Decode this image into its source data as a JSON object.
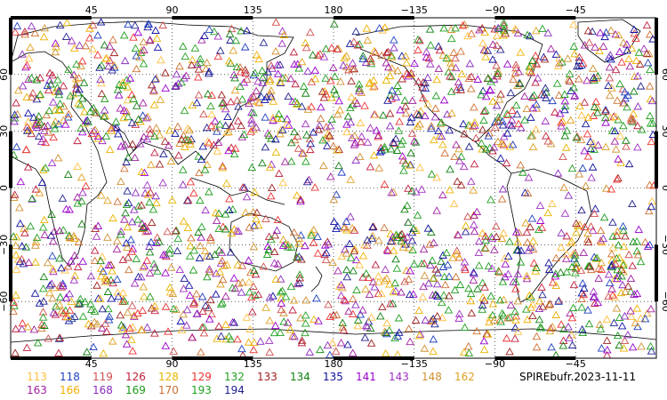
{
  "map": {
    "projection": "equirectangular",
    "lon_range": [
      0,
      360
    ],
    "lat_range": [
      -90,
      90
    ],
    "top_lon_ticks": [
      "45",
      "90",
      "135",
      "180",
      "−135",
      "−90",
      "−45"
    ],
    "bottom_lon_ticks": [
      "45",
      "90",
      "135",
      "180",
      "−135",
      "−90",
      "−45"
    ],
    "lat_ticks": [
      "60",
      "30",
      "0",
      "−30",
      "−60"
    ],
    "marker_shape": "triangle-outline",
    "coastlines": true,
    "gridlines": "dotted"
  },
  "legend": {
    "items": [
      {
        "label": "113",
        "color": "#ffbf3f"
      },
      {
        "label": "118",
        "color": "#1f3fbf"
      },
      {
        "label": "119",
        "color": "#d05050"
      },
      {
        "label": "126",
        "color": "#c0203f"
      },
      {
        "label": "128",
        "color": "#e8b400"
      },
      {
        "label": "129",
        "color": "#ee3333"
      },
      {
        "label": "132",
        "color": "#22a022"
      },
      {
        "label": "133",
        "color": "#a02020"
      },
      {
        "label": "134",
        "color": "#108010"
      },
      {
        "label": "135",
        "color": "#1010a0"
      },
      {
        "label": "141",
        "color": "#9900cc"
      },
      {
        "label": "143",
        "color": "#a030c0"
      },
      {
        "label": "148",
        "color": "#d09030"
      },
      {
        "label": "162",
        "color": "#e0a020"
      },
      {
        "label": "163",
        "color": "#a020a0"
      },
      {
        "label": "166",
        "color": "#f0b000"
      },
      {
        "label": "168",
        "color": "#8a2bbf"
      },
      {
        "label": "169",
        "color": "#1a9a1a"
      },
      {
        "label": "170",
        "color": "#d07030"
      },
      {
        "label": "193",
        "color": "#20a020"
      },
      {
        "label": "194",
        "color": "#202090"
      }
    ],
    "dataset_label": "SPIREbufr.2023-11-11"
  }
}
